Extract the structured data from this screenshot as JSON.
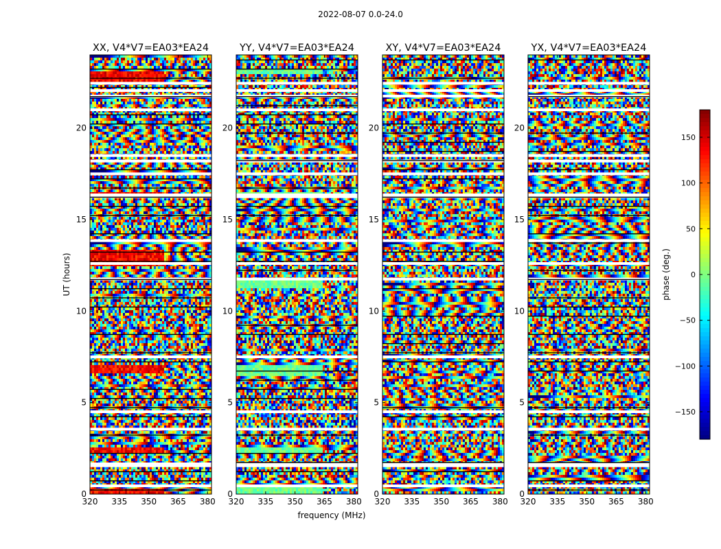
{
  "figure": {
    "suptitle": "2022-08-07 0.0-24.0"
  },
  "chart_data": {
    "type": "heatmap",
    "panels": [
      {
        "title": "XX, V4*V7=EA03*EA24",
        "bias": "red"
      },
      {
        "title": "YY, V4*V7=EA03*EA24",
        "bias": "cyan"
      },
      {
        "title": "XY, V4*V7=EA03*EA24",
        "bias": "none"
      },
      {
        "title": "YX, V4*V7=EA03*EA24",
        "bias": "none"
      }
    ],
    "xlabel": "frequency (MHz)",
    "ylabel": "UT (hours)",
    "xlim": [
      320,
      382
    ],
    "ylim": [
      0,
      24
    ],
    "xticks": [
      320,
      335,
      350,
      365,
      380
    ],
    "yticks": [
      0,
      5,
      10,
      15,
      20
    ],
    "colorbar": {
      "label": "phase (deg.)",
      "range": [
        -180,
        180
      ],
      "ticks": [
        -150,
        -100,
        -50,
        0,
        50,
        100,
        150
      ],
      "colormap": "jet"
    },
    "gaps_hours": [
      0.45,
      1.55,
      1.65,
      3.55,
      4.5,
      7.5,
      11.75,
      12.6,
      13.85,
      16.25,
      16.35,
      17.5,
      18.2,
      18.5,
      21.0,
      21.75,
      22.05,
      22.45
    ],
    "grid": false
  }
}
